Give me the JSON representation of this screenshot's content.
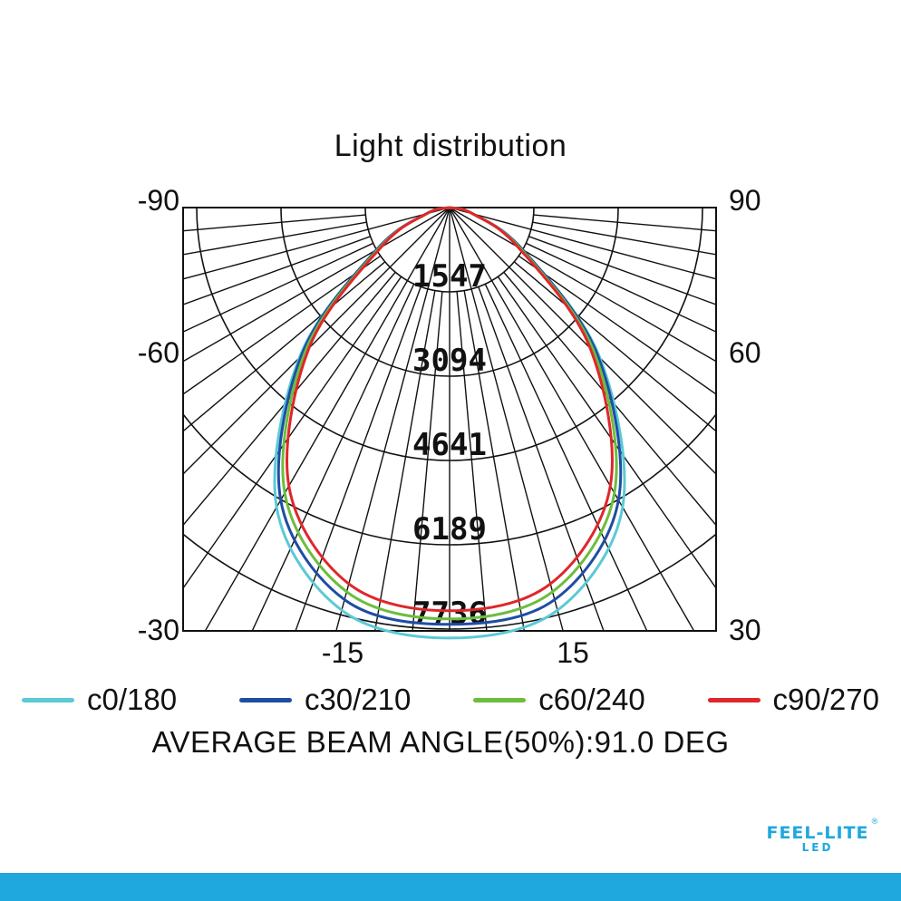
{
  "chart_data": {
    "type": "polar",
    "title": "Light distribution",
    "left_angle_labels": [
      "-90",
      "-60",
      "-30"
    ],
    "right_angle_labels": [
      "90",
      "60",
      "30"
    ],
    "bottom_angle_labels": [
      "-15",
      "15"
    ],
    "radial_labels": [
      "1547",
      "3094",
      "4641",
      "6189",
      "7736"
    ],
    "r_max": 7736,
    "series": [
      {
        "name": "c0/180",
        "color": "#5bc9d6",
        "angles": [
          -90,
          -75,
          -60,
          -45,
          -30,
          -15,
          0,
          15,
          30,
          45,
          60,
          75,
          90
        ],
        "values": [
          0,
          440,
          1550,
          3900,
          6350,
          7650,
          7900,
          7650,
          6350,
          3900,
          1550,
          440,
          0
        ]
      },
      {
        "name": "c30/210",
        "color": "#1e4da3",
        "angles": [
          -90,
          -75,
          -60,
          -45,
          -30,
          -15,
          0,
          15,
          30,
          45,
          60,
          75,
          90
        ],
        "values": [
          0,
          440,
          1550,
          3850,
          6200,
          7450,
          7650,
          7450,
          6200,
          3850,
          1550,
          440,
          0
        ]
      },
      {
        "name": "c60/240",
        "color": "#6cbd3e",
        "angles": [
          -90,
          -75,
          -60,
          -45,
          -30,
          -15,
          0,
          15,
          30,
          45,
          60,
          75,
          90
        ],
        "values": [
          0,
          440,
          1500,
          3750,
          6050,
          7300,
          7550,
          7300,
          6050,
          3750,
          1500,
          440,
          0
        ]
      },
      {
        "name": "c90/270",
        "color": "#e0262a",
        "angles": [
          -90,
          -75,
          -60,
          -45,
          -30,
          -15,
          0,
          15,
          30,
          45,
          60,
          75,
          90
        ],
        "values": [
          0,
          440,
          1450,
          3650,
          5900,
          7150,
          7400,
          7150,
          5900,
          3650,
          1450,
          440,
          0
        ]
      }
    ]
  },
  "footnote": "AVERAGE BEAM ANGLE(50%):91.0  DEG",
  "brand": {
    "name": "FEEL-LITE",
    "sub": "LED",
    "reg": "®"
  },
  "colors": {
    "brand": "#1fa8de",
    "bar": "#1fa8de",
    "grid": "#111111"
  }
}
